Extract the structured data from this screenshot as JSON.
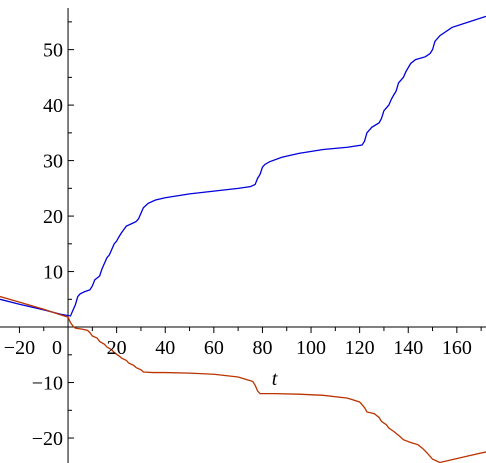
{
  "chart_data": {
    "type": "line",
    "title": "",
    "xlabel": "t",
    "ylabel": "",
    "xlim": [
      -28,
      172
    ],
    "ylim": [
      -24.5,
      57.5
    ],
    "x_ticks": [
      -20,
      0,
      20,
      40,
      60,
      80,
      100,
      120,
      140,
      160
    ],
    "y_ticks": [
      -20,
      -10,
      10,
      20,
      30,
      40,
      50
    ],
    "grid": false,
    "legend": "none",
    "series": [
      {
        "color": "#0000dd",
        "points": [
          [
            -28,
            5.0
          ],
          [
            -20,
            4.1
          ],
          [
            -10,
            3.1
          ],
          [
            -3,
            2.3
          ],
          [
            1,
            2.0
          ],
          [
            2,
            3.0
          ],
          [
            3,
            4.0
          ],
          [
            4,
            5.5
          ],
          [
            5,
            6.0
          ],
          [
            7,
            6.4
          ],
          [
            9,
            6.7
          ],
          [
            10,
            7.4
          ],
          [
            11,
            8.5
          ],
          [
            13,
            9.2
          ],
          [
            14,
            10.5
          ],
          [
            15,
            11.5
          ],
          [
            16,
            12.5
          ],
          [
            17,
            13.0
          ],
          [
            18,
            14.0
          ],
          [
            19,
            15.0
          ],
          [
            20,
            15.5
          ],
          [
            21,
            16.3
          ],
          [
            22,
            17.0
          ],
          [
            23,
            17.6
          ],
          [
            24,
            18.2
          ],
          [
            26,
            18.6
          ],
          [
            28,
            19.0
          ],
          [
            29,
            19.5
          ],
          [
            30,
            20.5
          ],
          [
            31,
            21.5
          ],
          [
            33,
            22.3
          ],
          [
            36,
            22.9
          ],
          [
            40,
            23.3
          ],
          [
            50,
            24.0
          ],
          [
            60,
            24.5
          ],
          [
            70,
            25.0
          ],
          [
            75,
            25.3
          ],
          [
            77,
            25.7
          ],
          [
            78,
            26.8
          ],
          [
            79,
            27.5
          ],
          [
            80,
            28.8
          ],
          [
            81,
            29.3
          ],
          [
            83,
            29.8
          ],
          [
            88,
            30.6
          ],
          [
            95,
            31.3
          ],
          [
            105,
            32.0
          ],
          [
            115,
            32.4
          ],
          [
            121,
            32.8
          ],
          [
            122,
            33.5
          ],
          [
            123,
            35.0
          ],
          [
            125,
            36.0
          ],
          [
            128,
            36.8
          ],
          [
            129,
            37.6
          ],
          [
            130,
            39.0
          ],
          [
            132,
            40.0
          ],
          [
            133,
            41.0
          ],
          [
            134,
            41.8
          ],
          [
            135,
            42.5
          ],
          [
            136,
            44.0
          ],
          [
            138,
            45.0
          ],
          [
            139,
            46.0
          ],
          [
            141,
            47.5
          ],
          [
            143,
            48.2
          ],
          [
            147,
            48.7
          ],
          [
            149,
            49.3
          ],
          [
            150,
            50.0
          ],
          [
            151,
            51.5
          ],
          [
            153,
            52.5
          ],
          [
            158,
            54.0
          ],
          [
            165,
            55.0
          ],
          [
            172,
            56.0
          ]
        ]
      },
      {
        "color": "#bb3300",
        "points": [
          [
            -28,
            5.5
          ],
          [
            -20,
            4.5
          ],
          [
            -10,
            3.2
          ],
          [
            -3,
            2.2
          ],
          [
            0,
            1.8
          ],
          [
            1,
            0.8
          ],
          [
            2,
            0.2
          ],
          [
            3,
            -0.2
          ],
          [
            6,
            -0.4
          ],
          [
            8,
            -0.6
          ],
          [
            9,
            -1.0
          ],
          [
            10,
            -1.6
          ],
          [
            12,
            -2.0
          ],
          [
            13,
            -2.6
          ],
          [
            15,
            -3.1
          ],
          [
            16,
            -3.6
          ],
          [
            18,
            -4.1
          ],
          [
            19,
            -4.6
          ],
          [
            21,
            -5.2
          ],
          [
            22,
            -5.6
          ],
          [
            24,
            -6.0
          ],
          [
            25,
            -6.5
          ],
          [
            27,
            -6.9
          ],
          [
            28,
            -7.3
          ],
          [
            30,
            -7.7
          ],
          [
            31,
            -8.1
          ],
          [
            35,
            -8.2
          ],
          [
            40,
            -8.2
          ],
          [
            50,
            -8.3
          ],
          [
            60,
            -8.5
          ],
          [
            70,
            -9.0
          ],
          [
            76,
            -9.8
          ],
          [
            77,
            -10.5
          ],
          [
            78,
            -11.5
          ],
          [
            79,
            -12.0
          ],
          [
            85,
            -12.0
          ],
          [
            95,
            -12.1
          ],
          [
            105,
            -12.3
          ],
          [
            115,
            -12.8
          ],
          [
            120,
            -13.5
          ],
          [
            122,
            -14.5
          ],
          [
            123,
            -15.3
          ],
          [
            126,
            -15.6
          ],
          [
            128,
            -16.3
          ],
          [
            129,
            -17.0
          ],
          [
            131,
            -17.6
          ],
          [
            132,
            -18.2
          ],
          [
            134,
            -18.8
          ],
          [
            136,
            -19.5
          ],
          [
            138,
            -20.3
          ],
          [
            141,
            -20.8
          ],
          [
            144,
            -21.2
          ],
          [
            146,
            -21.9
          ],
          [
            148,
            -22.8
          ],
          [
            150,
            -23.8
          ],
          [
            153,
            -24.4
          ],
          [
            157,
            -24.0
          ],
          [
            165,
            -23.2
          ],
          [
            172,
            -22.5
          ]
        ]
      }
    ]
  }
}
